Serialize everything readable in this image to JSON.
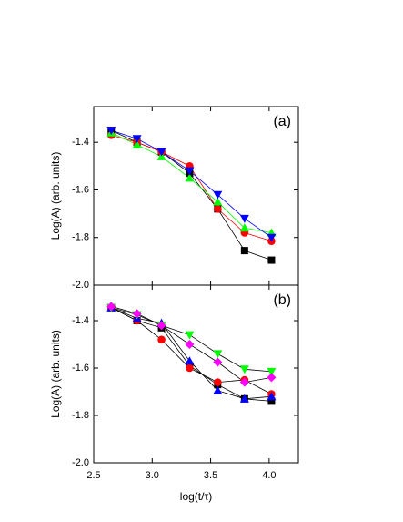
{
  "chart_data": [
    {
      "type": "line",
      "annotation": "(a)",
      "ylabel": "Log(A) (arb. units)",
      "x": [
        2.65,
        2.87,
        3.08,
        3.32,
        3.56,
        3.79,
        4.02
      ],
      "xlim": [
        2.5,
        4.25
      ],
      "ylim": [
        -2.0,
        -1.25
      ],
      "yticks": [
        {
          "value": -2.0,
          "label": "-2.0"
        },
        -1.8,
        -1.6,
        -1.4
      ],
      "lines_colored": true,
      "series": [
        {
          "color": "#000000",
          "marker": "square",
          "values": [
            -1.35,
            -1.4,
            -1.44,
            -1.53,
            -1.68,
            -1.855,
            -1.895
          ]
        },
        {
          "color": "#ff0000",
          "marker": "circle",
          "values": [
            -1.37,
            -1.4,
            -1.44,
            -1.5,
            -1.68,
            -1.78,
            -1.815
          ]
        },
        {
          "color": "#00ff00",
          "marker": "triangle-up",
          "values": [
            -1.36,
            -1.41,
            -1.46,
            -1.55,
            -1.65,
            -1.76,
            -1.78
          ]
        },
        {
          "color": "#0000ff",
          "marker": "triangle-down",
          "values": [
            -1.35,
            -1.385,
            -1.44,
            -1.52,
            -1.62,
            -1.72,
            -1.8
          ]
        }
      ]
    },
    {
      "type": "line",
      "annotation": "(b)",
      "ylabel": "Log(A) (arb. units)",
      "xlabel": "log(t/τ)",
      "x": [
        2.65,
        2.87,
        3.08,
        3.32,
        3.56,
        3.79,
        4.02
      ],
      "xlim": [
        2.5,
        4.25
      ],
      "ylim": [
        -2.0,
        -1.25
      ],
      "xticks": [
        2.5,
        {
          "value": 3.0,
          "label": "3.0"
        },
        3.5,
        {
          "value": 4.0,
          "label": "4.0"
        }
      ],
      "yticks": [
        {
          "value": -2.0,
          "label": "-2.0"
        },
        -1.8,
        -1.6,
        -1.4
      ],
      "lines_colored": false,
      "series": [
        {
          "color": "#000000",
          "marker": "square",
          "values": [
            -1.345,
            -1.4,
            -1.43,
            -1.59,
            -1.67,
            -1.73,
            -1.74
          ]
        },
        {
          "color": "#ff0000",
          "marker": "circle",
          "values": [
            -1.345,
            -1.4,
            -1.48,
            -1.6,
            -1.66,
            -1.65,
            -1.71
          ]
        },
        {
          "color": "#0000ff",
          "marker": "triangle-up",
          "values": [
            -1.345,
            -1.39,
            -1.41,
            -1.57,
            -1.695,
            -1.73,
            -1.72
          ]
        },
        {
          "color": "#00ff00",
          "marker": "triangle-down",
          "values": [
            -1.345,
            -1.375,
            -1.42,
            -1.46,
            -1.54,
            -1.605,
            -1.615
          ]
        },
        {
          "color": "#ff00ff",
          "marker": "diamond",
          "values": [
            -1.34,
            -1.37,
            -1.42,
            -1.5,
            -1.575,
            -1.66,
            -1.64
          ]
        }
      ]
    }
  ]
}
